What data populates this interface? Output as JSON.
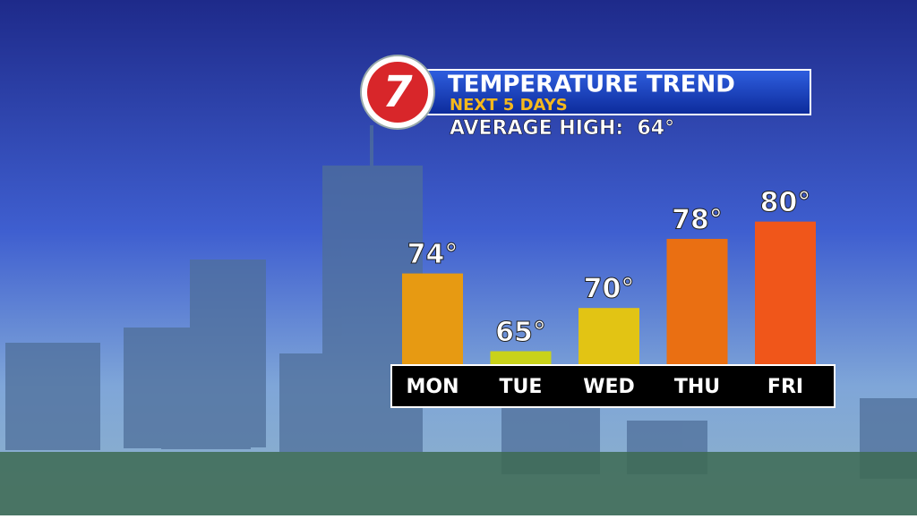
{
  "chart_data": {
    "type": "bar",
    "logo": "7",
    "title": "TEMPERATURE TREND",
    "subtitle": "NEXT 5 DAYS",
    "annotation": "AVERAGE HIGH:  64°",
    "categories": [
      "MON",
      "TUE",
      "WED",
      "THU",
      "FRI"
    ],
    "values": [
      74,
      65,
      70,
      78,
      80
    ],
    "value_labels": [
      "74°",
      "65°",
      "70°",
      "78°",
      "80°"
    ],
    "colors": [
      "#e79a12",
      "#c9d21a",
      "#e2c414",
      "#ea6f12",
      "#f0561a"
    ],
    "ylim": [
      63.5,
      84
    ]
  }
}
